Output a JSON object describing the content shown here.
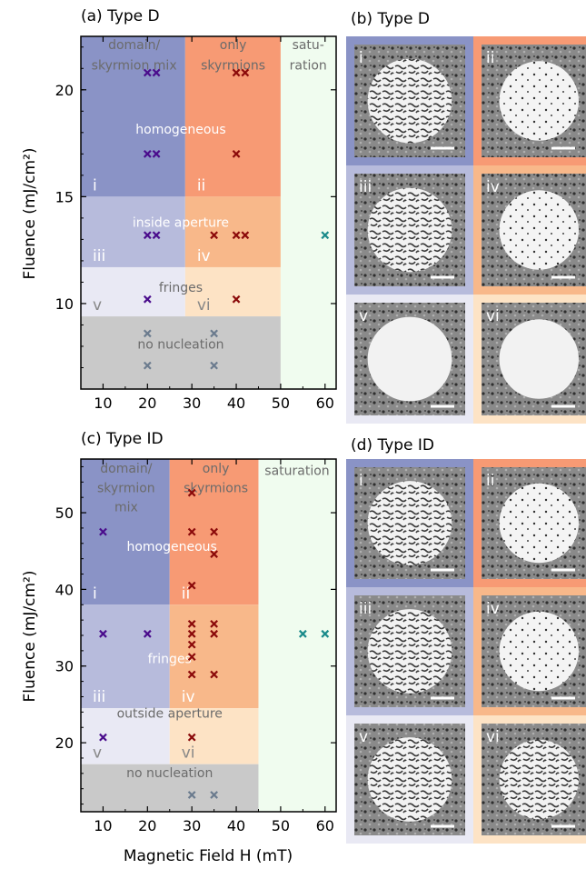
{
  "colors": {
    "domain_mix": "#8a93c6",
    "skyrmions": "#f79a74",
    "saturation": "#f0fcef",
    "inside_left": "#b7bbdc",
    "inside_right": "#f8b88a",
    "fringes_left": "#e9e9f4",
    "fringes_right": "#fde3c5",
    "no_nucleation": "#c9c9c9",
    "marker_domain": "#4a0c8c",
    "marker_skyrmion": "#8b0a0a",
    "marker_none": "#6b7b8e",
    "marker_saturation": "#1a8a8a",
    "label_dark": "#6b6b6b",
    "label_white": "#ffffff"
  },
  "chart_data": [
    {
      "panel": "(a) Type D",
      "type": "scatter",
      "xlabel": "",
      "ylabel": "Fluence (mJ/cm²)",
      "xlim": [
        5,
        62.5
      ],
      "ylim": [
        6,
        22.5
      ],
      "xticks": [
        10,
        20,
        30,
        40,
        50,
        60
      ],
      "yticks": [
        10,
        15,
        20
      ],
      "regions": [
        {
          "x": [
            5,
            28.5
          ],
          "y": [
            15,
            22.5
          ],
          "fill": "domain_mix",
          "roman": "i"
        },
        {
          "x": [
            28.5,
            50
          ],
          "y": [
            15,
            22.5
          ],
          "fill": "skyrmions",
          "roman": "ii"
        },
        {
          "x": [
            5,
            28.5
          ],
          "y": [
            11.7,
            15
          ],
          "fill": "inside_left",
          "roman": "iii"
        },
        {
          "x": [
            28.5,
            50
          ],
          "y": [
            11.7,
            15
          ],
          "fill": "inside_right",
          "roman": "iv"
        },
        {
          "x": [
            5,
            28.5
          ],
          "y": [
            9.4,
            11.7
          ],
          "fill": "fringes_left",
          "roman": "v"
        },
        {
          "x": [
            28.5,
            50
          ],
          "y": [
            9.4,
            11.7
          ],
          "fill": "fringes_right",
          "roman": "vi"
        },
        {
          "x": [
            5,
            50
          ],
          "y": [
            6,
            9.4
          ],
          "fill": "no_nucleation",
          "roman": ""
        },
        {
          "x": [
            50,
            62.5
          ],
          "y": [
            6,
            22.5
          ],
          "fill": "saturation",
          "roman": ""
        }
      ],
      "labels": [
        {
          "text": "domain/",
          "x": 17,
          "y": 21.9,
          "color": "label_dark"
        },
        {
          "text": "skyrmion mix",
          "x": 17,
          "y": 20.95,
          "color": "label_dark"
        },
        {
          "text": "only",
          "x": 39.3,
          "y": 21.9,
          "color": "label_dark"
        },
        {
          "text": "skyrmions",
          "x": 39.3,
          "y": 20.95,
          "color": "label_dark"
        },
        {
          "text": "satu-",
          "x": 56.2,
          "y": 21.9,
          "color": "label_dark"
        },
        {
          "text": "ration",
          "x": 56.2,
          "y": 20.95,
          "color": "label_dark"
        },
        {
          "text": "homogeneous",
          "x": 27.5,
          "y": 17.95,
          "color": "label_white"
        },
        {
          "text": "inside aperture",
          "x": 27.5,
          "y": 13.6,
          "color": "label_white"
        },
        {
          "text": "fringes",
          "x": 27.5,
          "y": 10.55,
          "color": "label_dark"
        },
        {
          "text": "no nucleation",
          "x": 27.5,
          "y": 7.9,
          "color": "label_dark"
        }
      ],
      "series": [
        {
          "group": "domain",
          "points": [
            [
              20,
              20.8
            ],
            [
              22,
              20.8
            ],
            [
              20,
              17
            ],
            [
              22,
              17
            ],
            [
              20,
              13.2
            ],
            [
              22,
              13.2
            ],
            [
              20,
              10.2
            ]
          ]
        },
        {
          "group": "skyrmion",
          "points": [
            [
              40,
              20.8
            ],
            [
              42,
              20.8
            ],
            [
              40,
              17
            ],
            [
              35,
              13.2
            ],
            [
              40,
              13.2
            ],
            [
              42,
              13.2
            ],
            [
              40,
              10.2
            ]
          ]
        },
        {
          "group": "none",
          "points": [
            [
              20,
              8.6
            ],
            [
              35,
              8.6
            ],
            [
              20,
              7.1
            ],
            [
              35,
              7.1
            ]
          ]
        },
        {
          "group": "saturation",
          "points": [
            [
              60,
              13.2
            ]
          ]
        }
      ]
    },
    {
      "panel": "(c) Type ID",
      "type": "scatter",
      "xlabel": "Magnetic Field H (mT)",
      "ylabel": "Fluence (mJ/cm²)",
      "xlim": [
        5,
        62.5
      ],
      "ylim": [
        11,
        57
      ],
      "xticks": [
        10,
        20,
        30,
        40,
        50,
        60
      ],
      "yticks": [
        20,
        30,
        40,
        50
      ],
      "regions": [
        {
          "x": [
            5,
            25
          ],
          "y": [
            38,
            57
          ],
          "fill": "domain_mix",
          "roman": "i"
        },
        {
          "x": [
            25,
            45
          ],
          "y": [
            38,
            57
          ],
          "fill": "skyrmions",
          "roman": "ii"
        },
        {
          "x": [
            5,
            25
          ],
          "y": [
            24.5,
            38
          ],
          "fill": "inside_left",
          "roman": "iii"
        },
        {
          "x": [
            25,
            45
          ],
          "y": [
            24.5,
            38
          ],
          "fill": "inside_right",
          "roman": "iv"
        },
        {
          "x": [
            5,
            25
          ],
          "y": [
            17.2,
            24.5
          ],
          "fill": "fringes_left",
          "roman": "v"
        },
        {
          "x": [
            25,
            45
          ],
          "y": [
            17.2,
            24.5
          ],
          "fill": "fringes_right",
          "roman": "vi"
        },
        {
          "x": [
            5,
            45
          ],
          "y": [
            11,
            17.2
          ],
          "fill": "no_nucleation",
          "roman": ""
        },
        {
          "x": [
            45,
            62.5
          ],
          "y": [
            11,
            57
          ],
          "fill": "saturation",
          "roman": ""
        }
      ],
      "labels": [
        {
          "text": "domain/",
          "x": 15.2,
          "y": 55.2,
          "color": "label_dark"
        },
        {
          "text": "skyrmion",
          "x": 15.2,
          "y": 52.7,
          "color": "label_dark"
        },
        {
          "text": "mix",
          "x": 15.2,
          "y": 50.2,
          "color": "label_dark"
        },
        {
          "text": "only",
          "x": 35.4,
          "y": 55.2,
          "color": "label_dark"
        },
        {
          "text": "skyrmions",
          "x": 35.4,
          "y": 52.7,
          "color": "label_dark"
        },
        {
          "text": "saturation",
          "x": 53.7,
          "y": 54.9,
          "color": "label_dark"
        },
        {
          "text": "homogeneous",
          "x": 25.5,
          "y": 45,
          "color": "label_white"
        },
        {
          "text": "fringes",
          "x": 25,
          "y": 30.4,
          "color": "label_white"
        },
        {
          "text": "outside aperture",
          "x": 25,
          "y": 23.3,
          "color": "label_dark"
        },
        {
          "text": "no nucleation",
          "x": 25,
          "y": 15.5,
          "color": "label_dark"
        }
      ],
      "series": [
        {
          "group": "domain",
          "points": [
            [
              10,
              47.5
            ],
            [
              10,
              34.2
            ],
            [
              20,
              34.2
            ],
            [
              10,
              20.7
            ]
          ]
        },
        {
          "group": "skyrmion",
          "points": [
            [
              30,
              52.6
            ],
            [
              30,
              47.5
            ],
            [
              35,
              47.5
            ],
            [
              35,
              44.6
            ],
            [
              30,
              40.5
            ],
            [
              30,
              35.5
            ],
            [
              35,
              35.5
            ],
            [
              30,
              34.2
            ],
            [
              35,
              34.2
            ],
            [
              30,
              32.8
            ],
            [
              30,
              31.2
            ],
            [
              30,
              28.9
            ],
            [
              35,
              28.9
            ],
            [
              30,
              20.7
            ]
          ]
        },
        {
          "group": "none",
          "points": [
            [
              30,
              13.2
            ],
            [
              35,
              13.2
            ]
          ]
        },
        {
          "group": "saturation",
          "points": [
            [
              55,
              34.2
            ],
            [
              60,
              34.2
            ]
          ]
        }
      ]
    }
  ],
  "panels": {
    "b": {
      "title": "(b) Type D",
      "tiles": [
        {
          "roman": "i",
          "border": "domain_mix",
          "texture": "maze"
        },
        {
          "roman": "ii",
          "border": "skyrmions",
          "texture": "dots"
        },
        {
          "roman": "iii",
          "border": "inside_left",
          "texture": "maze"
        },
        {
          "roman": "iv",
          "border": "inside_right",
          "texture": "dots"
        },
        {
          "roman": "v",
          "border": "fringes_left",
          "texture": "smooth"
        },
        {
          "roman": "vi",
          "border": "fringes_right",
          "texture": "smooth"
        }
      ]
    },
    "d": {
      "title": "(d) Type ID",
      "tiles": [
        {
          "roman": "i",
          "border": "domain_mix",
          "texture": "maze"
        },
        {
          "roman": "ii",
          "border": "skyrmions",
          "texture": "dots"
        },
        {
          "roman": "iii",
          "border": "inside_left",
          "texture": "maze"
        },
        {
          "roman": "iv",
          "border": "inside_right",
          "texture": "dots"
        },
        {
          "roman": "v",
          "border": "fringes_left",
          "texture": "maze"
        },
        {
          "roman": "vi",
          "border": "fringes_right",
          "texture": "maze"
        }
      ]
    }
  }
}
